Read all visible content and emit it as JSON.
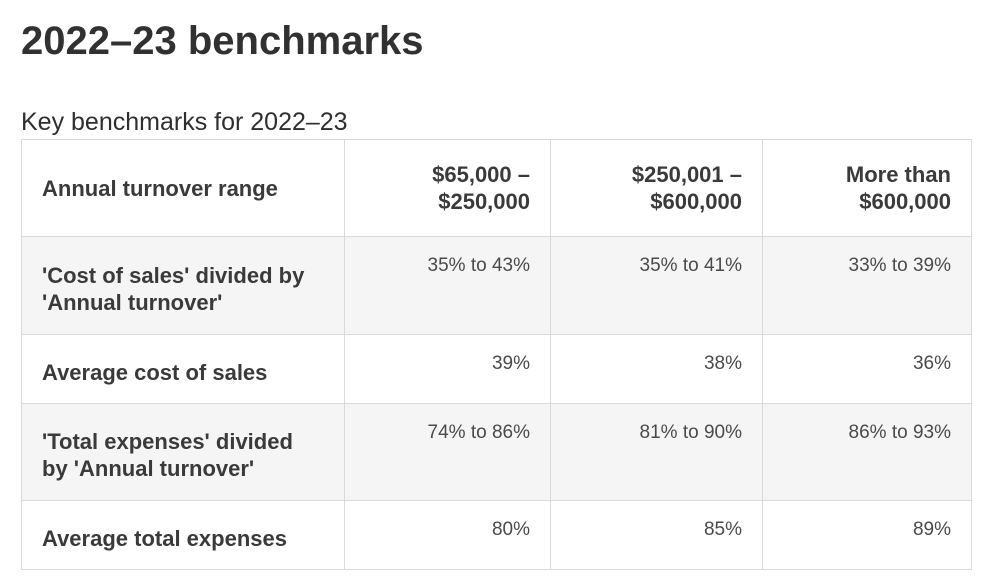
{
  "page": {
    "title": "2022–23 benchmarks"
  },
  "table": {
    "caption": "Key benchmarks for 2022–23",
    "header": {
      "row_label": "Annual turnover range",
      "columns": [
        {
          "line1": "$65,000 –",
          "line2": "$250,000"
        },
        {
          "line1": "$250,001 –",
          "line2": "$600,000"
        },
        {
          "line1": "More than",
          "line2": "$600,000"
        }
      ]
    },
    "rows": [
      {
        "label_line1": "'Cost of sales' divided by",
        "label_line2": "'Annual turnover'",
        "values": [
          "35% to 43%",
          "35% to 41%",
          "33% to 39%"
        ]
      },
      {
        "label_line1": "Average cost of sales",
        "label_line2": "",
        "values": [
          "39%",
          "38%",
          "36%"
        ]
      },
      {
        "label_line1": "'Total expenses' divided",
        "label_line2": "by 'Annual turnover'",
        "values": [
          "74% to 86%",
          "81% to 90%",
          "86% to 93%"
        ]
      },
      {
        "label_line1": "Average total expenses",
        "label_line2": "",
        "values": [
          "80%",
          "85%",
          "89%"
        ]
      }
    ]
  }
}
